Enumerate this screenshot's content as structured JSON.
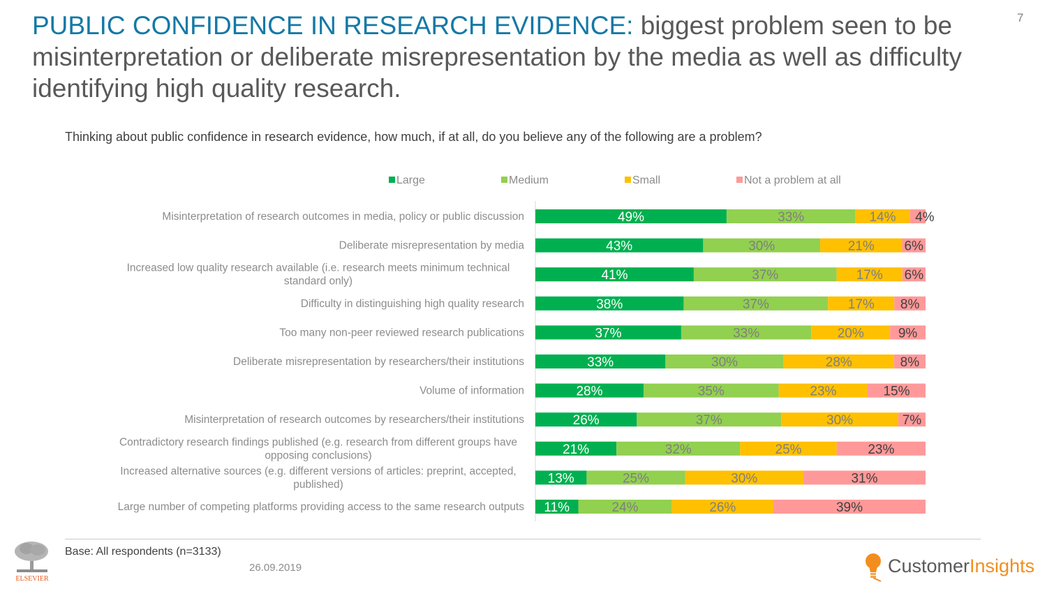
{
  "page": {
    "title_highlight": "PUBLIC CONFIDENCE IN RESEARCH EVIDENCE:",
    "title_rest": " biggest problem seen to be misinterpretation or deliberate misrepresentation by the media as well as difficulty identifying high quality research.",
    "page_number": "7",
    "question": "Thinking about public confidence in research evidence, how much, if at all, do you believe any of the following are a problem?",
    "base_note": "Base: All respondents (n=3133)",
    "date": "26.09.2019",
    "footer_logo_left": "ELSEVIER",
    "footer_logo_right_a": "Customer",
    "footer_logo_right_b": "Insights"
  },
  "colors": {
    "title_accent": "#1479a6",
    "large": "#00b050",
    "medium": "#92d050",
    "small": "#ffc000",
    "not_problem": "#ff9999",
    "label_on_large": "#ffffff",
    "label_on_other": "#7f7f7f",
    "label_on_not_problem": "#404040",
    "brand_orange": "#f28e1e"
  },
  "chart_data": {
    "type": "bar",
    "orientation": "horizontal",
    "stacked": true,
    "normalized": true,
    "title": "",
    "legend_position": "top",
    "series": [
      {
        "name": "Large",
        "color": "#00b050",
        "values": [
          49,
          43,
          41,
          38,
          37,
          33,
          28,
          26,
          21,
          13,
          11
        ]
      },
      {
        "name": "Medium",
        "color": "#92d050",
        "values": [
          33,
          30,
          37,
          37,
          33,
          30,
          35,
          37,
          32,
          25,
          24
        ]
      },
      {
        "name": "Small",
        "color": "#ffc000",
        "values": [
          14,
          21,
          17,
          17,
          20,
          28,
          23,
          30,
          25,
          30,
          26
        ]
      },
      {
        "name": "Not a problem at all",
        "color": "#ff9999",
        "values": [
          4,
          6,
          6,
          8,
          9,
          8,
          15,
          7,
          23,
          31,
          39
        ]
      }
    ],
    "categories": [
      "Misinterpretation of research outcomes in media, policy or public discussion",
      "Deliberate misrepresentation by media",
      "Increased low quality research available (i.e. research meets minimum technical standard only)",
      "Difficulty in distinguishing high quality research",
      "Too many non-peer reviewed research publications",
      "Deliberate misrepresentation by researchers/their institutions",
      "Volume of information",
      "Misinterpretation of research outcomes by researchers/their institutions",
      "Contradictory research findings published (e.g. research from different groups have opposing conclusions)",
      "Increased alternative sources (e.g. different versions of articles: preprint, accepted, published)",
      "Large number of competing platforms providing access to the same research outputs"
    ],
    "category_lines": [
      [
        "Misinterpretation of research outcomes in media, policy or public discussion"
      ],
      [
        "Deliberate misrepresentation by media"
      ],
      [
        "Increased low quality research available (i.e. research meets minimum technical",
        "standard only)"
      ],
      [
        "Difficulty in distinguishing high quality research"
      ],
      [
        "Too many non-peer reviewed research publications"
      ],
      [
        "Deliberate misrepresentation by researchers/their institutions"
      ],
      [
        "Volume of information"
      ],
      [
        "Misinterpretation of research outcomes by researchers/their institutions"
      ],
      [
        "Contradictory research findings published (e.g. research from different groups have",
        "opposing conclusions)"
      ],
      [
        "Increased alternative sources (e.g. different versions of articles: preprint, accepted,",
        "published)"
      ],
      [
        "Large number of competing platforms providing access to the same research outputs"
      ]
    ],
    "value_suffix": "%",
    "xlim": [
      0,
      100
    ]
  }
}
